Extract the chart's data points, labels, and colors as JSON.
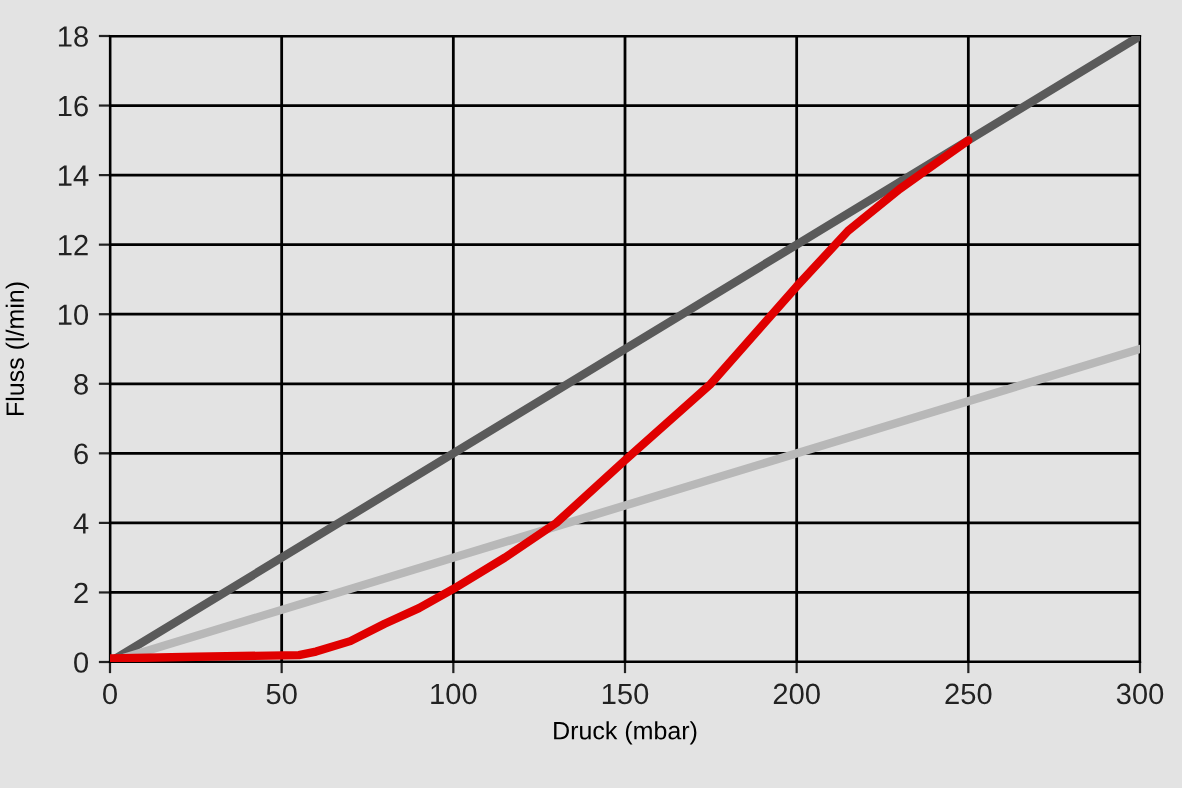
{
  "chart_data": {
    "type": "line",
    "xlabel": "Druck (mbar)",
    "ylabel": "Fluss (l/min)",
    "xlim": [
      0,
      300
    ],
    "ylim": [
      0,
      18
    ],
    "xticks": [
      0,
      50,
      100,
      150,
      200,
      250,
      300
    ],
    "yticks": [
      0,
      2,
      4,
      6,
      8,
      10,
      12,
      14,
      16,
      18
    ],
    "grid": true,
    "series": [
      {
        "color": "#5a5a5a",
        "x": [
          0,
          300
        ],
        "values": [
          0,
          18
        ]
      },
      {
        "color": "#b8b8b8",
        "x": [
          0,
          300
        ],
        "values": [
          0,
          9
        ]
      },
      {
        "color": "#e00000",
        "x": [
          0,
          25,
          55,
          60,
          70,
          80,
          90,
          100,
          115,
          130,
          150,
          175,
          200,
          215,
          230,
          240,
          250
        ],
        "values": [
          0.1,
          0.15,
          0.2,
          0.3,
          0.6,
          1.1,
          1.55,
          2.1,
          3.0,
          4.0,
          5.8,
          8.0,
          10.8,
          12.4,
          13.6,
          14.3,
          15.0
        ]
      }
    ]
  }
}
